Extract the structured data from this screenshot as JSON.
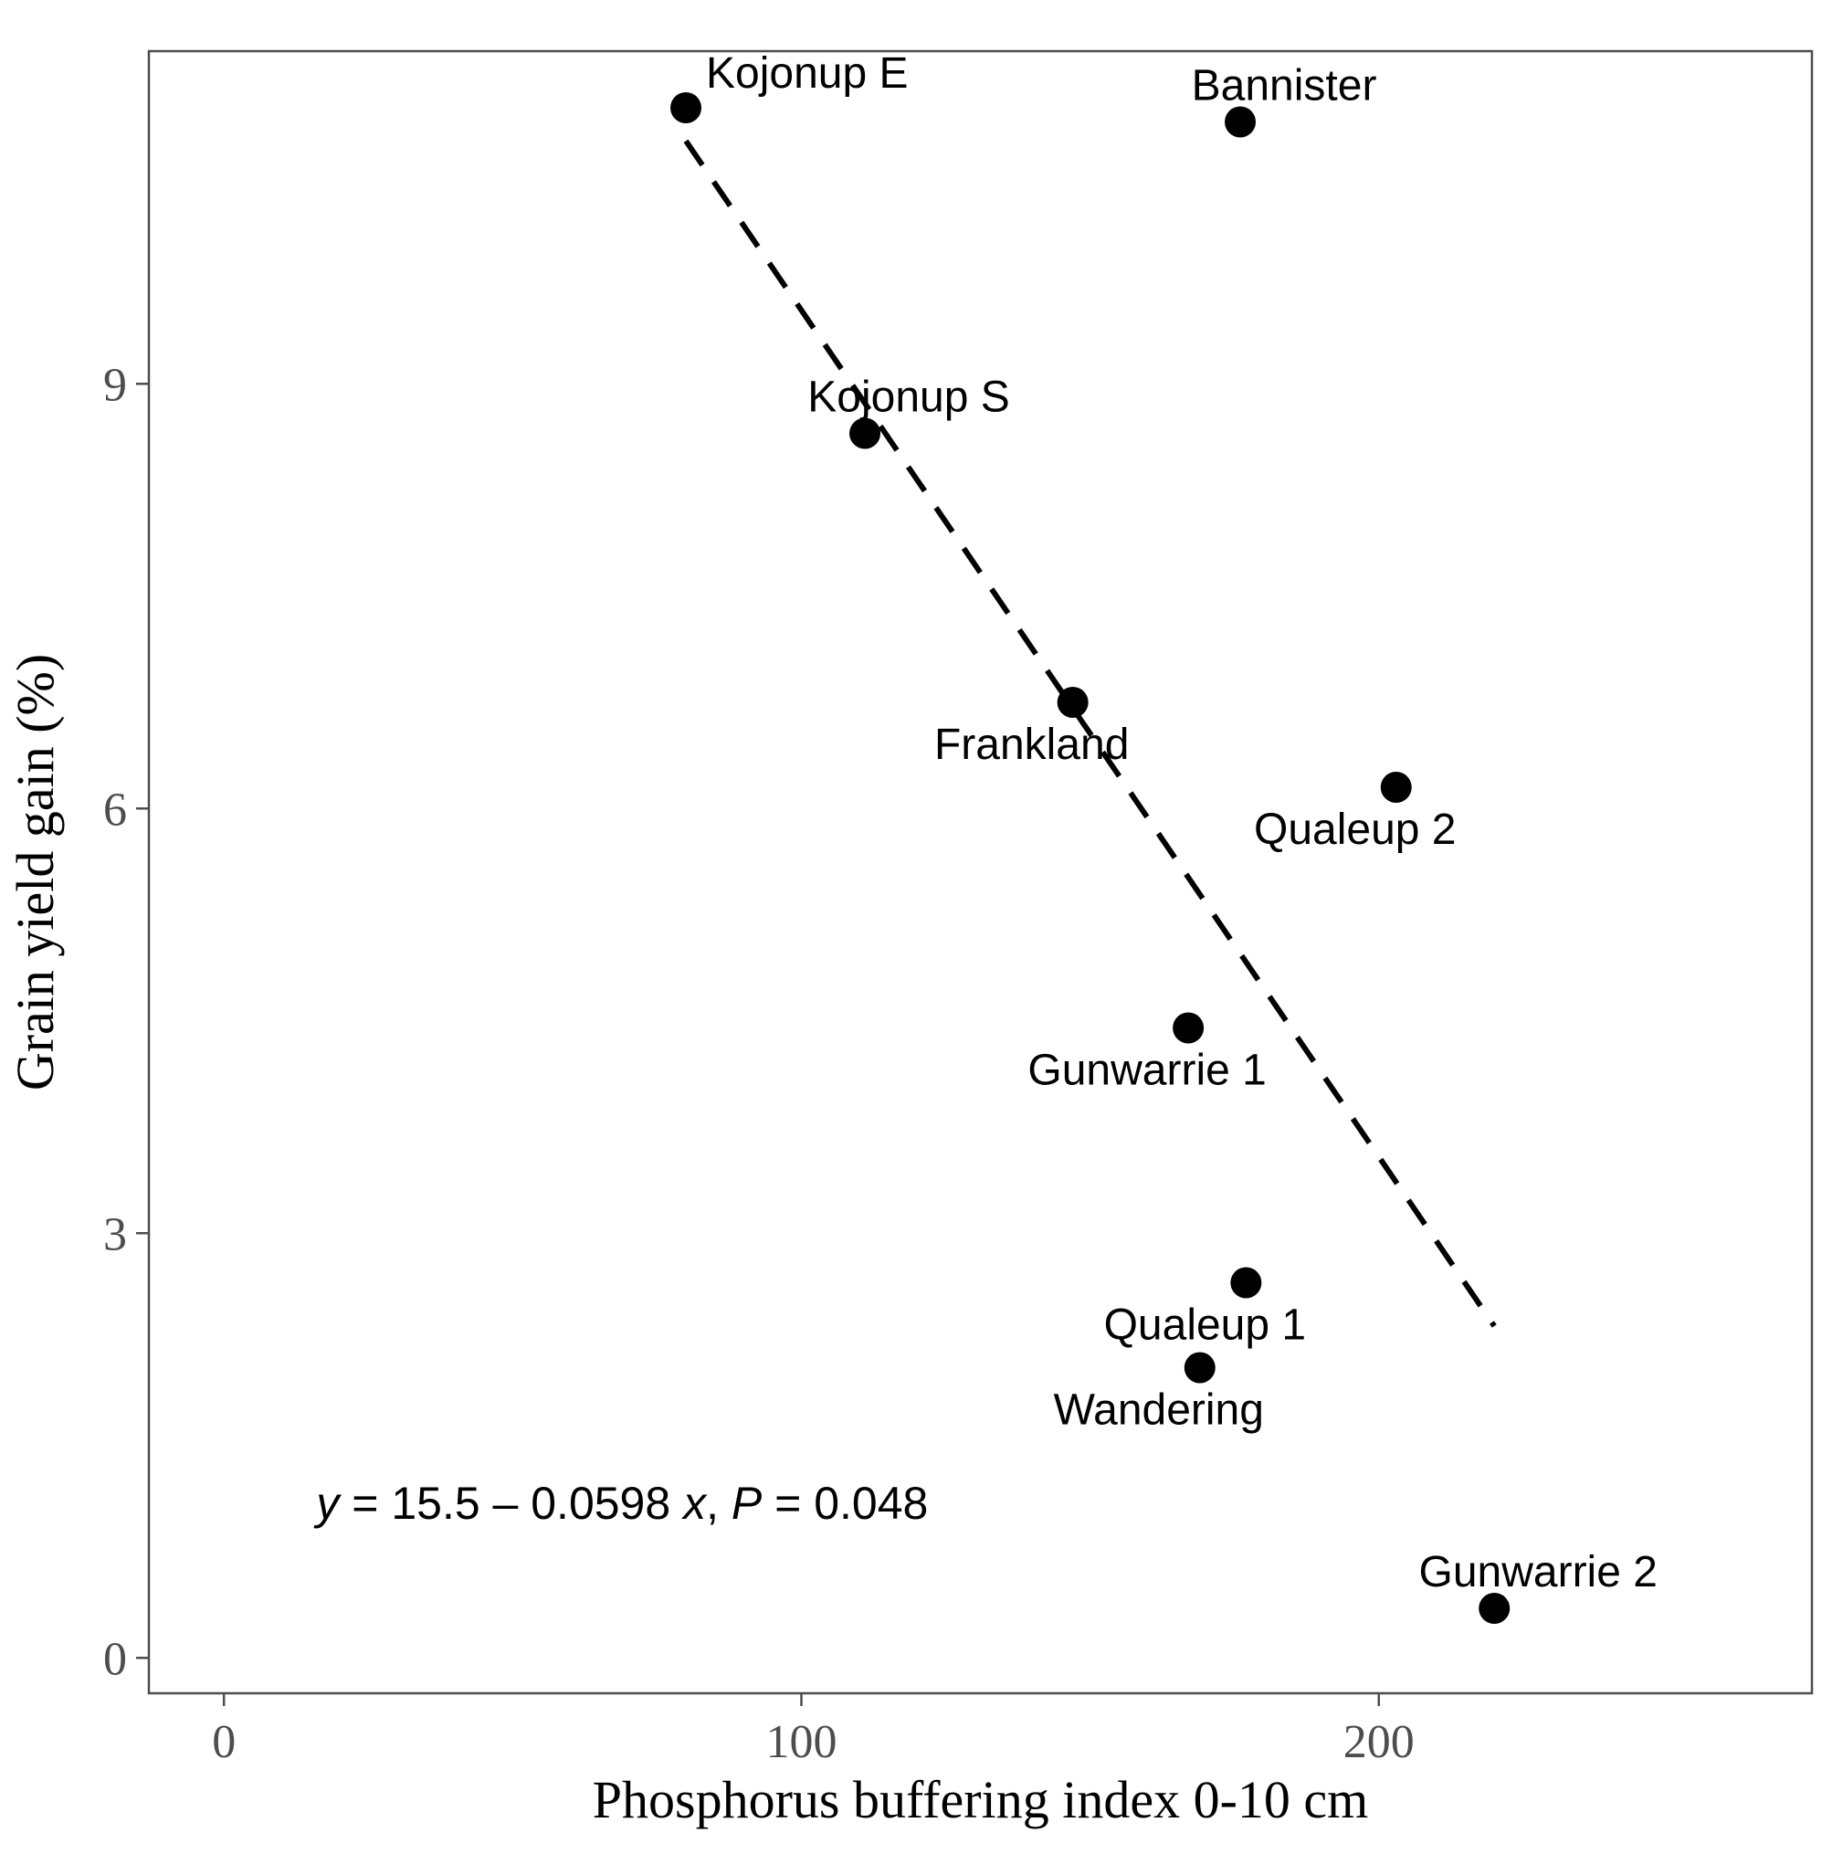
{
  "chart_data": {
    "type": "scatter",
    "xlabel": "Phosphorus buffering index 0-10 cm",
    "ylabel": "Grain yield gain (%)",
    "xlim": [
      -13,
      275
    ],
    "ylim": [
      -0.25,
      11.35
    ],
    "x_ticks": [
      0,
      100,
      200
    ],
    "y_ticks": [
      0,
      3,
      6,
      9
    ],
    "x_tick_labels": [
      "0",
      "100",
      "200"
    ],
    "y_tick_labels": [
      "0",
      "3",
      "6",
      "9"
    ],
    "grid": false,
    "colors": {
      "points": "#000000",
      "fit_line": "#000000",
      "panel_border": "#4d4d4d",
      "ticks": "#4d4d4d"
    },
    "points": [
      {
        "name": "Kojonup E",
        "x": 80,
        "y": 10.95,
        "label": "Kojonup E",
        "label_pos": "above-right"
      },
      {
        "name": "Bannister",
        "x": 176,
        "y": 10.85,
        "label": "Bannister",
        "label_pos": "above"
      },
      {
        "name": "Kojonup S",
        "x": 111,
        "y": 8.65,
        "label": "Kojonup S",
        "label_pos": "above"
      },
      {
        "name": "Frankland",
        "x": 147,
        "y": 6.75,
        "label": "Frankland",
        "label_pos": "below-left"
      },
      {
        "name": "Qualeup 2",
        "x": 203,
        "y": 6.15,
        "label": "Qualeup 2",
        "label_pos": "below-left"
      },
      {
        "name": "Gunwarrie 1",
        "x": 167,
        "y": 4.45,
        "label": "Gunwarrie 1",
        "label_pos": "below-left"
      },
      {
        "name": "Qualeup 1",
        "x": 177,
        "y": 2.65,
        "label": "Qualeup 1",
        "label_pos": "below-left"
      },
      {
        "name": "Wandering",
        "x": 169,
        "y": 2.05,
        "label": "Wandering",
        "label_pos": "below-left"
      },
      {
        "name": "Gunwarrie 2",
        "x": 220,
        "y": 0.35,
        "label": "Gunwarrie 2",
        "label_pos": "above"
      }
    ],
    "fit_line": {
      "style": "dashed",
      "intercept": 15.5,
      "slope": -0.0598,
      "x_range": [
        80,
        220
      ]
    },
    "annotation": {
      "parts": [
        {
          "text": "y",
          "italic": true
        },
        {
          "text": " = 15.5 – 0.0598 ",
          "italic": false
        },
        {
          "text": "x",
          "italic": true
        },
        {
          "text": ", ",
          "italic": false
        },
        {
          "text": "P",
          "italic": true
        },
        {
          "text": " = 0.048",
          "italic": false
        }
      ],
      "x": 16,
      "y": 1.1
    }
  }
}
